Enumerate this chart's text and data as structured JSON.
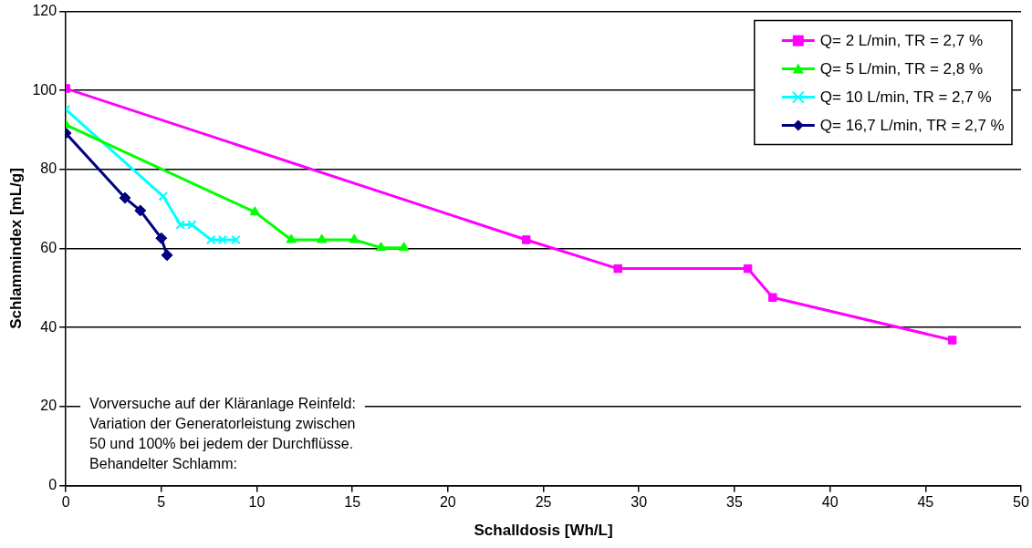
{
  "chart_data": {
    "type": "line",
    "xlabel": "Schalldosis [Wh/L]",
    "ylabel": "Schlammindex [mL/g]",
    "xlim": [
      0,
      50
    ],
    "xticks": [
      0,
      5,
      10,
      15,
      20,
      25,
      30,
      35,
      40,
      45,
      50
    ],
    "ylim": [
      0,
      120
    ],
    "yticks": [
      0,
      20,
      40,
      60,
      80,
      100,
      120
    ],
    "grid": "y",
    "legend": "top right",
    "annotations": [
      "Vorversuche auf der Kläranlage Reinfeld:\nVariation der Generatorleistung zwischen\n50 und 100% bei jedem der Durchflüsse.\nBehandelter Schlamm:"
    ],
    "series": [
      {
        "name": "Q= 2 L/min, TR = 2,7 %",
        "color": "#ff00ff",
        "marker": "square",
        "x": [
          0,
          24.1,
          28.9,
          35.7,
          37.0,
          46.4
        ],
        "values": [
          100.5,
          62.2,
          54.9,
          54.9,
          47.6,
          36.8
        ]
      },
      {
        "name": "Q= 5 L/min, TR = 2,8 %",
        "color": "#00ff00",
        "marker": "triangle",
        "x": [
          0,
          9.9,
          11.8,
          13.4,
          15.1,
          16.5,
          17.7
        ],
        "values": [
          91.3,
          69.2,
          62.2,
          62.2,
          62.2,
          60.2,
          60.2
        ]
      },
      {
        "name": "Q= 10 L/min, TR = 2,7 %",
        "color": "#00ffff",
        "marker": "cross",
        "x": [
          0,
          5.1,
          6.0,
          6.6,
          7.6,
          8.2,
          8.9
        ],
        "values": [
          95.2,
          73.2,
          66.0,
          66.0,
          62.2,
          62.2,
          62.2
        ]
      },
      {
        "name": "Q= 16,7 L/min, TR = 2,7 %",
        "color": "#000080",
        "marker": "diamond",
        "x": [
          0,
          3.1,
          3.9,
          5.0,
          5.3
        ],
        "values": [
          89.2,
          72.8,
          69.6,
          62.6,
          58.3
        ]
      }
    ]
  }
}
